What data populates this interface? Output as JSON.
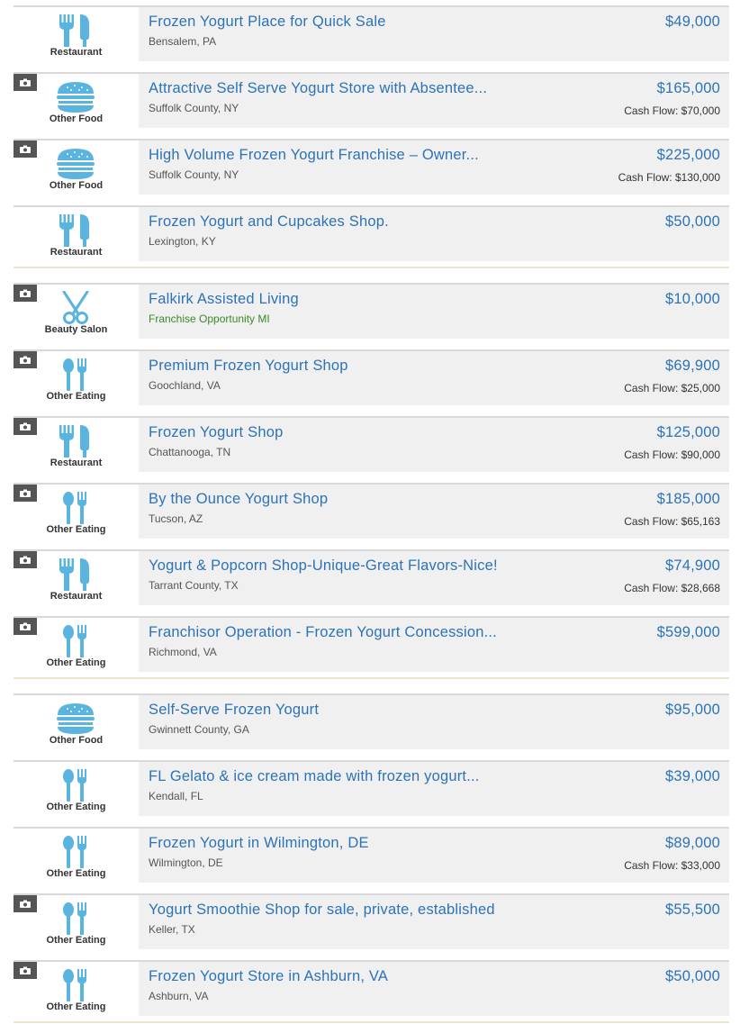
{
  "colors": {
    "link": "#2c73b8",
    "icon": "#5ab4e0",
    "camera_badge": "#555555",
    "green_location": "#3a8a28"
  },
  "groups": [
    [
      {
        "title": "Frozen Yogurt Place for Quick Sale",
        "location": "Bensalem, PA",
        "price": "$49,000",
        "cash_flow": "",
        "category": "Restaurant",
        "icon": "restaurant-icon",
        "photo": false
      },
      {
        "title": "Attractive Self Serve Yogurt Store with Absentee...",
        "location": "Suffolk County, NY",
        "price": "$165,000",
        "cash_flow": "Cash Flow: $70,000",
        "category": "Other Food",
        "icon": "burger-icon",
        "photo": true
      },
      {
        "title": "High Volume Frozen Yogurt Franchise – Owner...",
        "location": "Suffolk County, NY",
        "price": "$225,000",
        "cash_flow": "Cash Flow: $130,000",
        "category": "Other Food",
        "icon": "burger-icon",
        "photo": true
      },
      {
        "title": "Frozen Yogurt and Cupcakes Shop.",
        "location": "Lexington, KY",
        "price": "$50,000",
        "cash_flow": "",
        "category": "Restaurant",
        "icon": "restaurant-icon",
        "photo": false
      }
    ],
    [
      {
        "title": "Falkirk Assisted Living",
        "location": "Franchise Opportunity MI",
        "location_green": true,
        "price": "$10,000",
        "cash_flow": "",
        "category": "Beauty Salon",
        "icon": "scissors-icon",
        "photo": true
      },
      {
        "title": "Premium Frozen Yogurt Shop",
        "location": "Goochland, VA",
        "price": "$69,900",
        "cash_flow": "Cash Flow: $25,000",
        "category": "Other Eating",
        "icon": "spoon-fork-icon",
        "photo": true
      },
      {
        "title": "Frozen Yogurt Shop",
        "location": "Chattanooga, TN",
        "price": "$125,000",
        "cash_flow": "Cash Flow: $90,000",
        "category": "Restaurant",
        "icon": "restaurant-icon",
        "photo": true
      },
      {
        "title": "By the Ounce Yogurt Shop",
        "location": "Tucson, AZ",
        "price": "$185,000",
        "cash_flow": "Cash Flow: $65,163",
        "category": "Other Eating",
        "icon": "spoon-fork-icon",
        "photo": true
      },
      {
        "title": "Yogurt & Popcorn Shop-Unique-Great Flavors-Nice!",
        "location": "Tarrant County, TX",
        "price": "$74,900",
        "cash_flow": "Cash Flow: $28,668",
        "category": "Restaurant",
        "icon": "restaurant-icon",
        "photo": true
      },
      {
        "title": "Franchisor Operation - Frozen Yogurt Concession...",
        "location": "Richmond, VA",
        "price": "$599,000",
        "cash_flow": "",
        "category": "Other Eating",
        "icon": "spoon-fork-icon",
        "photo": true
      }
    ],
    [
      {
        "title": "Self-Serve Frozen Yogurt",
        "location": "Gwinnett County, GA",
        "price": "$95,000",
        "cash_flow": "",
        "category": "Other Food",
        "icon": "burger-icon",
        "photo": false
      },
      {
        "title": "FL Gelato & ice cream made with frozen yogurt...",
        "location": "Kendall, FL",
        "price": "$39,000",
        "cash_flow": "",
        "category": "Other Eating",
        "icon": "spoon-fork-icon",
        "photo": false
      },
      {
        "title": "Frozen Yogurt in Wilmington, DE",
        "location": "Wilmington, DE",
        "price": "$89,000",
        "cash_flow": "Cash Flow: $33,000",
        "category": "Other Eating",
        "icon": "spoon-fork-icon",
        "photo": false
      },
      {
        "title": "Yogurt Smoothie Shop for sale, private, established",
        "location": "Keller, TX",
        "price": "$55,500",
        "cash_flow": "",
        "category": "Other Eating",
        "icon": "spoon-fork-icon",
        "photo": true
      },
      {
        "title": "Frozen Yogurt Store in Ashburn, VA",
        "location": "Ashburn, VA",
        "price": "$50,000",
        "cash_flow": "",
        "category": "Other Eating",
        "icon": "spoon-fork-icon",
        "photo": true
      }
    ]
  ]
}
